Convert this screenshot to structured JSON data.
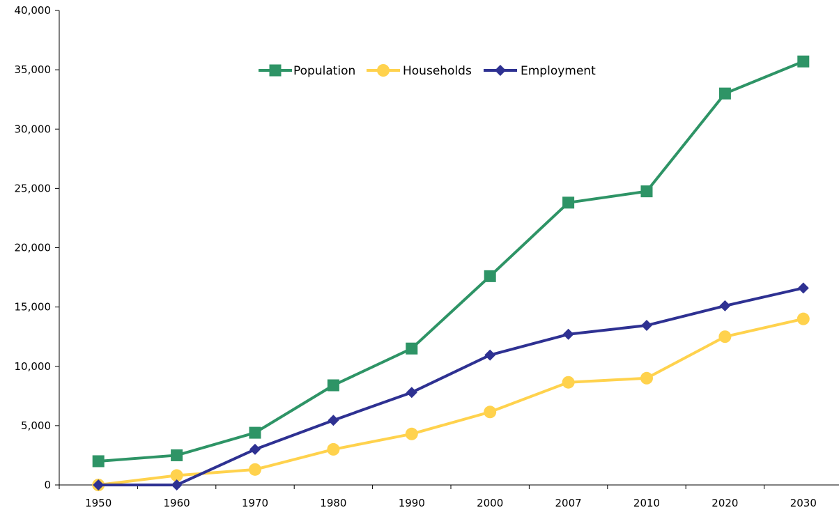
{
  "chart_data": {
    "type": "line",
    "categories": [
      "1950",
      "1960",
      "1970",
      "1980",
      "1990",
      "2000",
      "2007",
      "2010",
      "2020",
      "2030"
    ],
    "ylim": [
      0,
      40000
    ],
    "yticks": [
      0,
      5000,
      10000,
      15000,
      20000,
      25000,
      30000,
      35000,
      40000
    ],
    "ytick_labels": [
      "0",
      "5,000",
      "10,000",
      "15,000",
      "20,000",
      "25,000",
      "30,000",
      "35,000",
      "40,000"
    ],
    "grid": false,
    "legend_position": "top-center",
    "series": [
      {
        "name": "Population",
        "color": "#2e9466",
        "marker": "square",
        "values": [
          2000,
          2500,
          4400,
          8400,
          11500,
          17600,
          23800,
          24750,
          33000,
          35700
        ]
      },
      {
        "name": "Households",
        "color": "#ffd24d",
        "marker": "circle",
        "values": [
          0,
          800,
          1300,
          3000,
          4300,
          6150,
          8650,
          9000,
          12500,
          14000
        ]
      },
      {
        "name": "Employment",
        "color": "#2e3192",
        "marker": "diamond",
        "values": [
          0,
          0,
          3000,
          5450,
          7800,
          10950,
          12700,
          13450,
          15100,
          16600
        ]
      }
    ]
  }
}
